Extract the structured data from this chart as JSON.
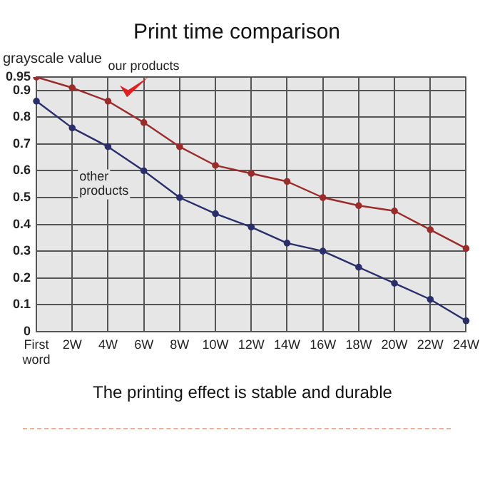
{
  "chart_data": {
    "type": "line",
    "title": "Print time comparison",
    "ylabel": "grayscale value",
    "categories": [
      "First word",
      "2W",
      "4W",
      "6W",
      "8W",
      "10W",
      "12W",
      "14W",
      "16W",
      "18W",
      "20W",
      "22W",
      "24W"
    ],
    "series": [
      {
        "name": "our products",
        "color": "#9b2c2c",
        "values": [
          0.95,
          0.91,
          0.86,
          0.78,
          0.69,
          0.62,
          0.59,
          0.56,
          0.5,
          0.47,
          0.45,
          0.38,
          0.31
        ]
      },
      {
        "name": "other products",
        "color": "#2a2f6b",
        "values": [
          0.86,
          0.76,
          0.69,
          0.6,
          0.5,
          0.44,
          0.39,
          0.33,
          0.3,
          0.24,
          0.18,
          0.12,
          0.04
        ]
      }
    ],
    "ylim": [
      0,
      0.95
    ],
    "yticks": [
      0,
      0.1,
      0.2,
      0.3,
      0.4,
      0.5,
      0.6,
      0.7,
      0.8,
      0.9,
      0.95
    ],
    "grid": true,
    "legend": false,
    "marker": "circle",
    "line_style": "solid",
    "annotations": [
      "The printing effect is stable and durable"
    ]
  }
}
